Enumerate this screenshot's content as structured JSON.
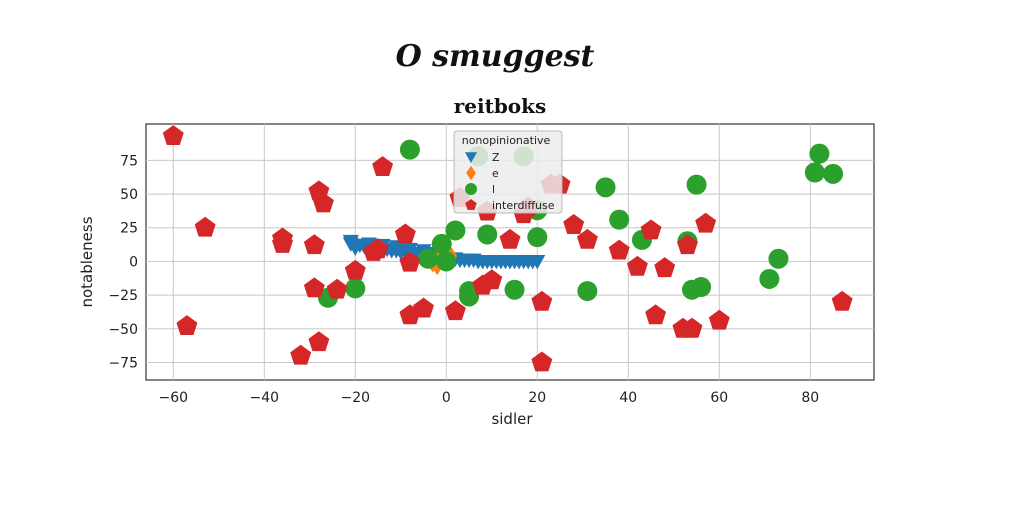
{
  "chart_data": {
    "type": "scatter",
    "suptitle": "O smuggest",
    "title": "reitboks",
    "xlabel": "sidler",
    "ylabel": "notableness",
    "xlim": [
      -66,
      94
    ],
    "ylim": [
      -88,
      102
    ],
    "xticks": [
      -60,
      -40,
      -20,
      0,
      20,
      40,
      60,
      80
    ],
    "yticks": [
      -75,
      -50,
      -25,
      0,
      25,
      50,
      75
    ],
    "grid": true,
    "legend": {
      "title": "nonopinionative",
      "placement": "top-center"
    },
    "colors": {
      "Z": "#1f77b4",
      "e": "#ff7f0e",
      "l": "#2ca02c",
      "interdiffuse": "#d62728"
    },
    "series": [
      {
        "name": "Z",
        "marker": "triangle-down",
        "points": [
          [
            -21,
            13
          ],
          [
            -20,
            12
          ],
          [
            -19,
            12
          ],
          [
            -18,
            11
          ],
          [
            -17,
            11
          ],
          [
            -16,
            10
          ],
          [
            -15,
            10
          ],
          [
            -14,
            9
          ],
          [
            -13,
            9
          ],
          [
            -12,
            8
          ],
          [
            -11,
            8
          ],
          [
            -10,
            7
          ],
          [
            -9,
            7
          ],
          [
            -8,
            6
          ],
          [
            -7,
            6
          ],
          [
            -6,
            5
          ],
          [
            -5,
            5
          ],
          [
            -4,
            4
          ],
          [
            -3,
            4
          ],
          [
            -2,
            3
          ],
          [
            -1,
            3
          ],
          [
            0,
            2
          ],
          [
            1,
            2
          ],
          [
            2,
            2
          ],
          [
            3,
            1
          ],
          [
            4,
            1
          ],
          [
            5,
            1
          ],
          [
            6,
            1
          ],
          [
            7,
            0
          ],
          [
            8,
            0
          ],
          [
            9,
            0
          ],
          [
            10,
            0
          ],
          [
            11,
            0
          ],
          [
            12,
            0
          ],
          [
            13,
            0
          ],
          [
            14,
            0
          ],
          [
            15,
            0
          ],
          [
            16,
            0
          ],
          [
            17,
            0
          ],
          [
            18,
            0
          ],
          [
            19,
            0
          ],
          [
            20,
            0
          ],
          [
            -21,
            15
          ],
          [
            -20,
            10
          ],
          [
            -17,
            13
          ],
          [
            -14,
            12
          ],
          [
            -11,
            11
          ],
          [
            -8,
            9
          ],
          [
            -5,
            8
          ],
          [
            -2,
            6
          ]
        ]
      },
      {
        "name": "e",
        "marker": "diamond",
        "points": [
          [
            -2,
            2
          ],
          [
            -1,
            5
          ],
          [
            0,
            1
          ],
          [
            -3,
            -1
          ],
          [
            1,
            4
          ],
          [
            -2,
            -3
          ],
          [
            0,
            -1
          ]
        ]
      },
      {
        "name": "l",
        "marker": "circle",
        "points": [
          [
            -8,
            83
          ],
          [
            7,
            78
          ],
          [
            17,
            78
          ],
          [
            35,
            55
          ],
          [
            55,
            57
          ],
          [
            82,
            80
          ],
          [
            81,
            66
          ],
          [
            85,
            65
          ],
          [
            20,
            38
          ],
          [
            38,
            31
          ],
          [
            2,
            23
          ],
          [
            -1,
            13
          ],
          [
            9,
            20
          ],
          [
            20,
            18
          ],
          [
            43,
            16
          ],
          [
            53,
            15
          ],
          [
            73,
            2
          ],
          [
            71,
            -13
          ],
          [
            -20,
            -20
          ],
          [
            -26,
            -27
          ],
          [
            5,
            -22
          ],
          [
            5,
            -26
          ],
          [
            15,
            -21
          ],
          [
            31,
            -22
          ],
          [
            54,
            -21
          ],
          [
            56,
            -19
          ],
          [
            0,
            0
          ],
          [
            -4,
            2
          ]
        ]
      },
      {
        "name": "interdiffuse",
        "marker": "pentagon",
        "points": [
          [
            -60,
            93
          ],
          [
            -14,
            70
          ],
          [
            -28,
            52
          ],
          [
            -27,
            43
          ],
          [
            -53,
            25
          ],
          [
            -36,
            17
          ],
          [
            -36,
            13
          ],
          [
            -29,
            12
          ],
          [
            -15,
            9
          ],
          [
            -16,
            7
          ],
          [
            -9,
            20
          ],
          [
            -20,
            -7
          ],
          [
            -8,
            -1
          ],
          [
            -29,
            -20
          ],
          [
            -24,
            -21
          ],
          [
            -57,
            -48
          ],
          [
            -8,
            -40
          ],
          [
            -5,
            -35
          ],
          [
            2,
            -37
          ],
          [
            8,
            -18
          ],
          [
            10,
            -14
          ],
          [
            21,
            -30
          ],
          [
            14,
            16
          ],
          [
            17,
            35
          ],
          [
            18,
            40
          ],
          [
            23,
            57
          ],
          [
            25,
            57
          ],
          [
            9,
            37
          ],
          [
            3,
            47
          ],
          [
            28,
            27
          ],
          [
            31,
            16
          ],
          [
            38,
            8
          ],
          [
            42,
            -4
          ],
          [
            48,
            -5
          ],
          [
            45,
            23
          ],
          [
            53,
            12
          ],
          [
            57,
            28
          ],
          [
            60,
            -44
          ],
          [
            46,
            -40
          ],
          [
            52,
            -50
          ],
          [
            54,
            -50
          ],
          [
            87,
            -30
          ],
          [
            21,
            -75
          ],
          [
            -32,
            -70
          ],
          [
            -28,
            -60
          ]
        ]
      }
    ]
  }
}
